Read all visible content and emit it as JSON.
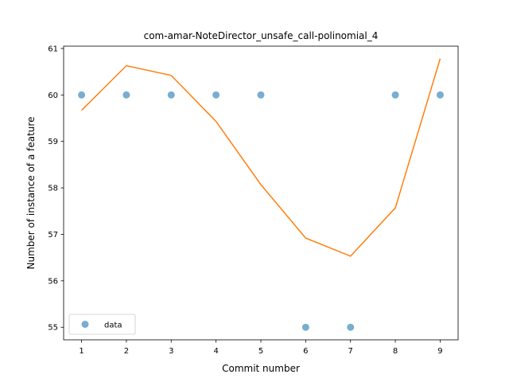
{
  "chart_data": {
    "type": "scatter",
    "title": "com-amar-NoteDirector_unsafe_call-polinomial_4",
    "xlabel": "Commit number",
    "ylabel": "Number of instance of a feature",
    "xlim": [
      0.6,
      9.4
    ],
    "ylim": [
      54.73,
      61.05
    ],
    "xticks": [
      1,
      2,
      3,
      4,
      5,
      6,
      7,
      8,
      9
    ],
    "yticks": [
      55,
      56,
      57,
      58,
      59,
      60,
      61
    ],
    "series": [
      {
        "name": "data",
        "kind": "scatter",
        "color": "#1f77b4",
        "x": [
          1,
          2,
          3,
          4,
          5,
          6,
          7,
          8,
          9
        ],
        "y": [
          60,
          60,
          60,
          60,
          60,
          55,
          55,
          60,
          60
        ]
      },
      {
        "kind": "line",
        "color": "#ff7f0e",
        "x": [
          1,
          2,
          3,
          4,
          5,
          6,
          7,
          8,
          9
        ],
        "y": [
          59.67,
          60.63,
          60.42,
          59.43,
          58.07,
          56.92,
          56.53,
          57.57,
          60.78
        ]
      }
    ],
    "legend": {
      "position": "lower-left",
      "entries": [
        "data"
      ]
    },
    "grid": false
  }
}
